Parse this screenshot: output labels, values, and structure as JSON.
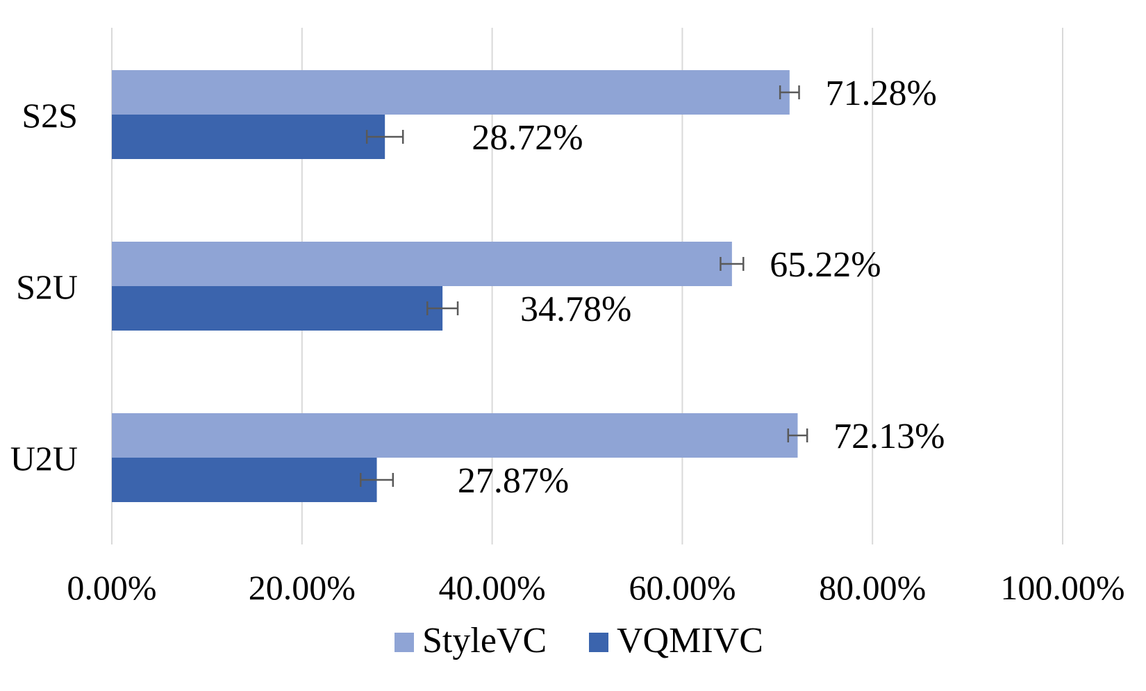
{
  "chart_data": {
    "type": "bar",
    "orientation": "horizontal",
    "categories": [
      "S2S",
      "S2U",
      "U2U"
    ],
    "series": [
      {
        "name": "StyleVC",
        "color": "#8fa4d5",
        "values": [
          71.28,
          65.22,
          72.13
        ],
        "labels": [
          "71.28%",
          "65.22%",
          "72.13%"
        ],
        "error": [
          1.0,
          1.2,
          1.0
        ]
      },
      {
        "name": "VQMIVC",
        "color": "#3b64ad",
        "values": [
          28.72,
          34.78,
          27.87
        ],
        "labels": [
          "28.72%",
          "34.78%",
          "27.87%"
        ],
        "error": [
          1.9,
          1.6,
          1.7
        ]
      }
    ],
    "title": "",
    "xlabel": "",
    "ylabel": "",
    "xlim": [
      0,
      100
    ],
    "xticks": [
      0,
      20,
      40,
      60,
      80,
      100
    ],
    "xtick_labels": [
      "0.00%",
      "20.00%",
      "40.00%",
      "60.00%",
      "80.00%",
      "100.00%"
    ],
    "grid": "vertical",
    "gridline_color": "#d9d9d9",
    "errorbar_color": "#595959",
    "legend_position": "bottom"
  }
}
